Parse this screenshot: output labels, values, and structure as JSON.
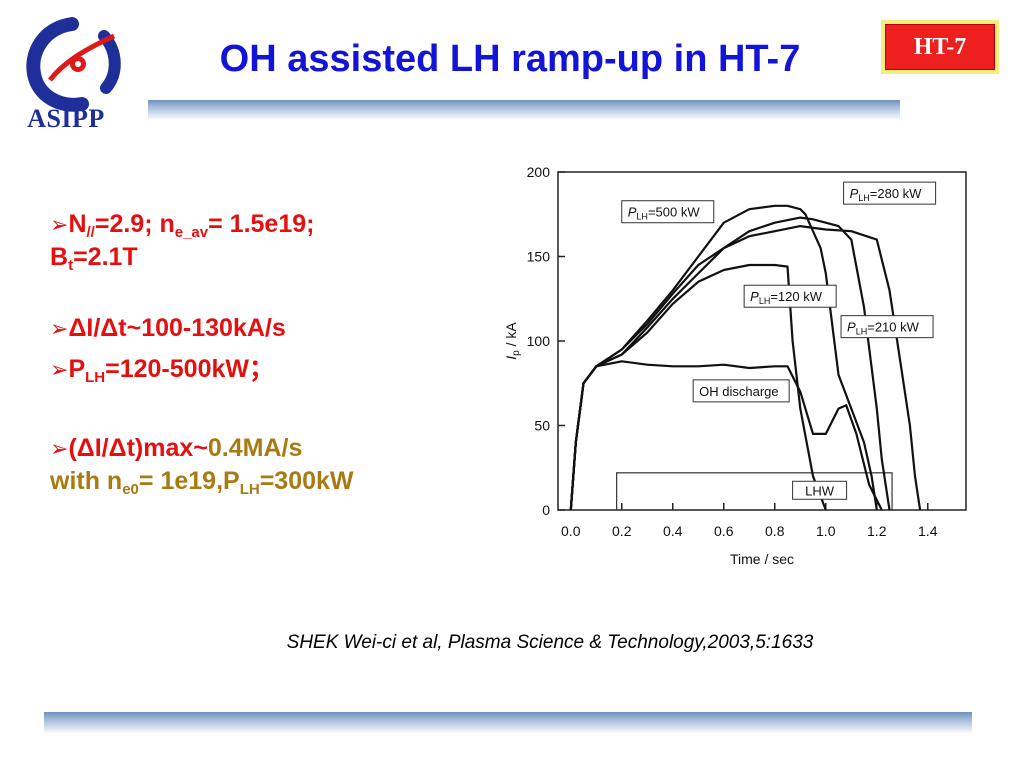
{
  "header": {
    "logo_text": "ASIPP",
    "title": "OH assisted LH ramp-up in HT-7",
    "badge": "HT-7"
  },
  "bullets": {
    "b1_N": "N",
    "b1_N_sub": "//",
    "b1_a": "=2.9; n",
    "b1_ne_sub": "e_av",
    "b1_b": "= 1.5e19;",
    "b1_B": "B",
    "b1_B_sub": "t",
    "b1_c": "=2.1T",
    "b2": "ΔI/Δt~100-130kA/s",
    "b3_P": "P",
    "b3_sub": "LH",
    "b3_rest": "=120-500kW；",
    "b4_red": "(ΔI/Δt)max~",
    "b4_gold": "0.4MA/s",
    "b5_a": "with n",
    "b5_sub1": "e0",
    "b5_b": "= 1e19,P",
    "b5_sub2": "LH",
    "b5_c": "=300kW"
  },
  "chart_data": {
    "type": "line",
    "xlabel": "Time / sec",
    "ylabel_base": "I",
    "ylabel_sub": "p",
    "ylabel_unit": " / kA",
    "xlim": [
      -0.05,
      1.55
    ],
    "ylim": [
      0,
      200
    ],
    "xticks": [
      0.0,
      0.2,
      0.4,
      0.6,
      0.8,
      1.0,
      1.2,
      1.4
    ],
    "xtick_labels": [
      "0.0",
      "0.2",
      "0.4",
      "0.6",
      "0.8",
      "1.0",
      "1.2",
      "1.4"
    ],
    "yticks": [
      0,
      50,
      100,
      150,
      200
    ],
    "ytick_labels": [
      "0",
      "50",
      "100",
      "150",
      "200"
    ],
    "lhw_window": {
      "label": "LHW",
      "x": [
        0.18,
        1.26
      ],
      "y": [
        0,
        22
      ]
    },
    "series": [
      {
        "name": "P_LH=500 kW",
        "label_base": "P",
        "label_sub": "LH",
        "label_rest": "=500 kW",
        "x": [
          0.0,
          0.02,
          0.05,
          0.1,
          0.2,
          0.3,
          0.4,
          0.5,
          0.6,
          0.7,
          0.8,
          0.85,
          0.9,
          0.92,
          0.95,
          0.98,
          1.0,
          1.05,
          1.1,
          1.15,
          1.18,
          1.2
        ],
        "y": [
          0,
          40,
          75,
          85,
          95,
          112,
          130,
          150,
          170,
          178,
          180,
          180,
          178,
          175,
          165,
          155,
          140,
          80,
          60,
          40,
          20,
          0
        ]
      },
      {
        "name": "P_LH=280 kW",
        "label_base": "P",
        "label_sub": "LH",
        "label_rest": "=280 kW",
        "x": [
          0.0,
          0.02,
          0.05,
          0.1,
          0.2,
          0.3,
          0.4,
          0.5,
          0.6,
          0.7,
          0.8,
          0.9,
          0.95,
          1.0,
          1.05,
          1.1,
          1.15,
          1.2,
          1.22,
          1.25
        ],
        "y": [
          0,
          40,
          75,
          85,
          92,
          108,
          125,
          140,
          155,
          165,
          170,
          173,
          172,
          170,
          168,
          160,
          120,
          60,
          30,
          0
        ]
      },
      {
        "name": "P_LH=120 kW",
        "label_base": "P",
        "label_sub": "LH",
        "label_rest": "=120 kW",
        "x": [
          0.0,
          0.02,
          0.05,
          0.1,
          0.2,
          0.3,
          0.4,
          0.5,
          0.6,
          0.7,
          0.8,
          0.85,
          0.87,
          0.9,
          0.95,
          1.0
        ],
        "y": [
          0,
          40,
          75,
          85,
          92,
          105,
          122,
          135,
          142,
          145,
          145,
          144,
          100,
          60,
          20,
          0
        ]
      },
      {
        "name": "P_LH=210 kW",
        "label_base": "P",
        "label_sub": "LH",
        "label_rest": "=210 kW",
        "x": [
          0.0,
          0.02,
          0.05,
          0.1,
          0.2,
          0.3,
          0.4,
          0.5,
          0.6,
          0.7,
          0.8,
          0.9,
          1.0,
          1.1,
          1.2,
          1.25,
          1.3,
          1.33,
          1.35,
          1.37
        ],
        "y": [
          0,
          40,
          75,
          85,
          95,
          110,
          128,
          145,
          155,
          162,
          165,
          168,
          166,
          165,
          160,
          130,
          80,
          50,
          20,
          0
        ]
      },
      {
        "name": "OH discharge",
        "label_base": "OH discharge",
        "label_sub": "",
        "label_rest": "",
        "x": [
          0.0,
          0.02,
          0.05,
          0.1,
          0.2,
          0.3,
          0.4,
          0.5,
          0.6,
          0.7,
          0.8,
          0.85,
          0.9,
          0.95,
          1.0,
          1.05,
          1.08,
          1.12,
          1.17,
          1.22
        ],
        "y": [
          0,
          40,
          75,
          85,
          88,
          86,
          85,
          85,
          86,
          84,
          85,
          85,
          70,
          45,
          45,
          60,
          62,
          45,
          15,
          0
        ]
      }
    ]
  },
  "citation": "SHEK Wei-ci et al, Plasma Science & Technology,2003,5:1633"
}
